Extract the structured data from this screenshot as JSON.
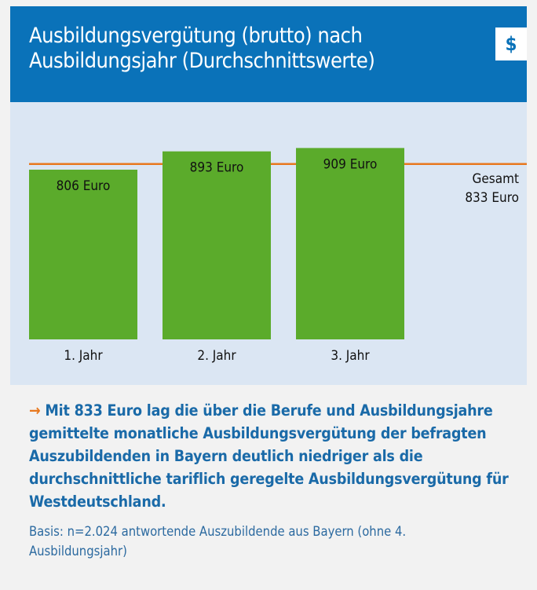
{
  "chart_data": {
    "type": "bar",
    "title": "Ausbildungsvergütung (brutto) nach Ausbildungsjahr (Durchschnittswerte)",
    "categories": [
      "1. Jahr",
      "2. Jahr",
      "3. Jahr"
    ],
    "values": [
      806,
      893,
      909
    ],
    "value_labels": [
      "806 Euro",
      "893 Euro",
      "909 Euro"
    ],
    "color": "#5bab2b",
    "ylim": [
      0,
      1000
    ],
    "reference_value": 833,
    "reference_name": "Gesamt",
    "reference_label": "833 Euro",
    "reference_color": "#e8781e",
    "summary": "Mit 833 Euro lag die über die Berufe und Ausbildungsjahre gemittelte monatliche Ausbildungsvergütung der befragten Auszubildenden in Bayern deutlich niedriger als die durchschnittliche tariflich geregelte Ausbildungsvergütung für Westdeutschland.",
    "note": "Basis: n=2.024 antwortende Auszubildende aus Bayern (ohne 4. Ausbildungsjahr)"
  }
}
